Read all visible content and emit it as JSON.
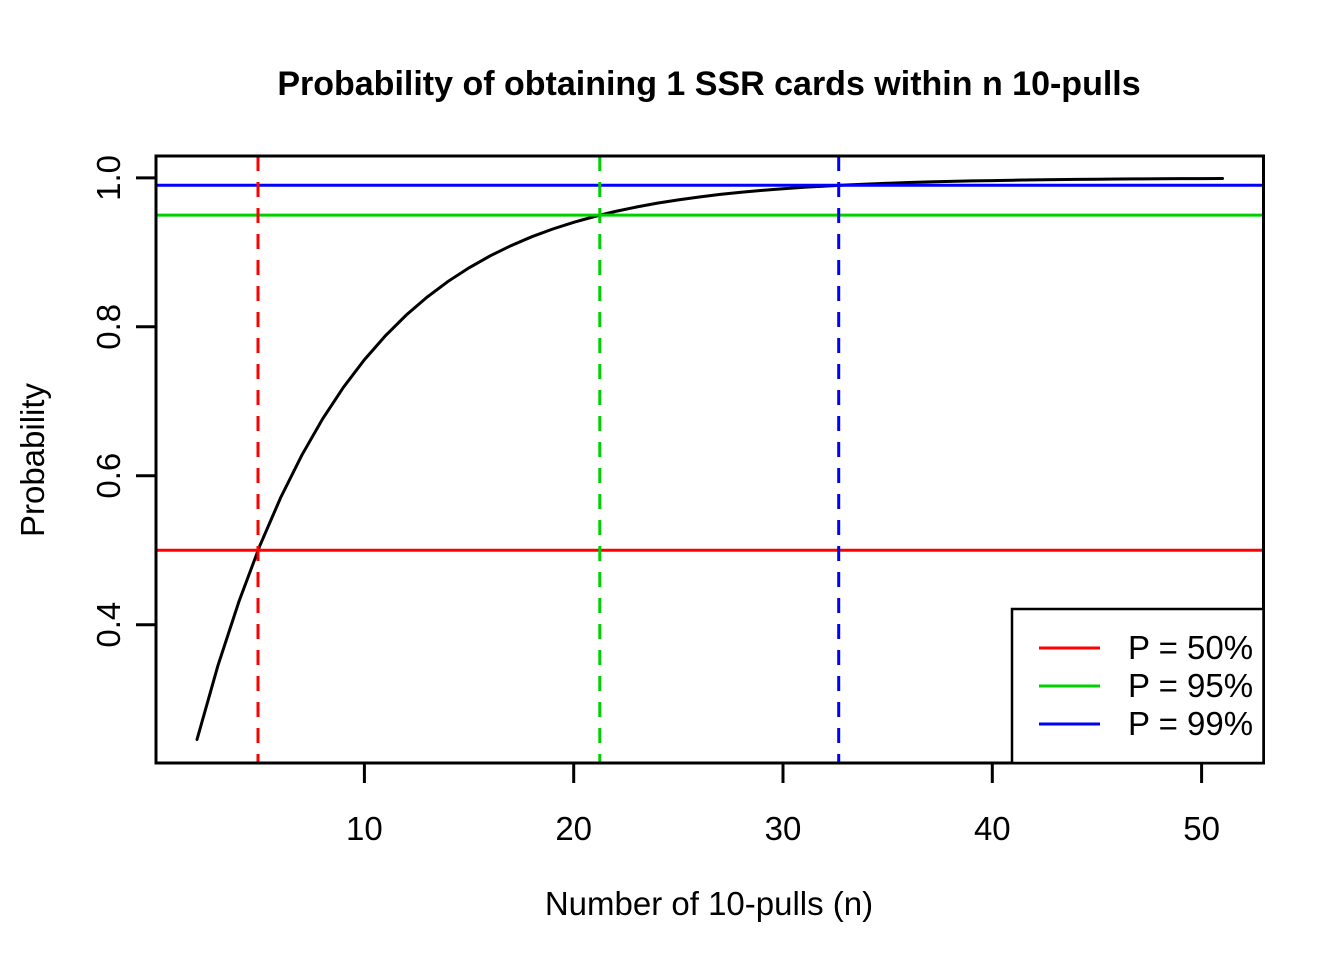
{
  "chart_data": {
    "type": "line",
    "title": "Probability of obtaining 1 SSR cards within n 10-pulls",
    "xlabel": "Number of 10-pulls (n)",
    "ylabel": "Probability",
    "xlim": [
      0.04,
      52.96
    ],
    "ylim": [
      0.2142,
      1.0294
    ],
    "grid": false,
    "x_ticks": [
      {
        "v": 10,
        "label": "10"
      },
      {
        "v": 20,
        "label": "20"
      },
      {
        "v": 30,
        "label": "30"
      },
      {
        "v": 40,
        "label": "40"
      },
      {
        "v": 50,
        "label": "50"
      }
    ],
    "y_ticks": [
      {
        "v": 0.4,
        "label": "0.4"
      },
      {
        "v": 0.6,
        "label": "0.6"
      },
      {
        "v": 0.8,
        "label": "0.8"
      },
      {
        "v": 1.0,
        "label": "1.0"
      }
    ],
    "series": [
      {
        "name": "probability-curve",
        "color": "#000000",
        "x": [
          2,
          3,
          4,
          5,
          6,
          7,
          8,
          9,
          10,
          11,
          12,
          13,
          14,
          15,
          16,
          17,
          18,
          19,
          20,
          21,
          22,
          23,
          24,
          25,
          26,
          27,
          28,
          29,
          30,
          31,
          32,
          33,
          34,
          35,
          36,
          37,
          38,
          39,
          40,
          41,
          42,
          43,
          44,
          45,
          46,
          47,
          48,
          49,
          50,
          51
        ],
        "y": [
          0.2457,
          0.3449,
          0.431,
          0.5059,
          0.5708,
          0.6273,
          0.6763,
          0.7189,
          0.7558,
          0.7879,
          0.8158,
          0.84,
          0.8611,
          0.8793,
          0.8952,
          0.909,
          0.921,
          0.9314,
          0.9404,
          0.9482,
          0.955,
          0.9609,
          0.9661,
          0.9705,
          0.9744,
          0.9778,
          0.9807,
          0.9832,
          0.9854,
          0.9874,
          0.989,
          0.9905,
          0.9917,
          0.9928,
          0.9938,
          0.9946,
          0.9953,
          0.9959,
          0.9964,
          0.9969,
          0.9973,
          0.9977,
          0.998,
          0.9982,
          0.9985,
          0.9987,
          0.9988,
          0.999,
          0.9991,
          0.9992
        ]
      }
    ],
    "hlines": [
      {
        "y": 0.5,
        "color": "#ff0000",
        "style": "solid"
      },
      {
        "y": 0.95,
        "color": "#00d000",
        "style": "solid"
      },
      {
        "y": 0.99,
        "color": "#0000ff",
        "style": "solid"
      }
    ],
    "vlines": [
      {
        "x": 4.916,
        "color": "#ff0000",
        "style": "dashed"
      },
      {
        "x": 21.247,
        "color": "#00d000",
        "style": "dashed"
      },
      {
        "x": 32.664,
        "color": "#0000ff",
        "style": "dashed"
      }
    ],
    "legend": {
      "position": "bottomright",
      "entries": [
        {
          "label": "P = 50%",
          "color": "#ff0000"
        },
        {
          "label": "P = 95%",
          "color": "#00d000"
        },
        {
          "label": "P = 99%",
          "color": "#0000ff"
        }
      ]
    },
    "colors": {
      "curve": "#000000",
      "p50": "#ff0000",
      "p95": "#00d000",
      "p99": "#0000ff",
      "background": "#ffffff"
    }
  }
}
